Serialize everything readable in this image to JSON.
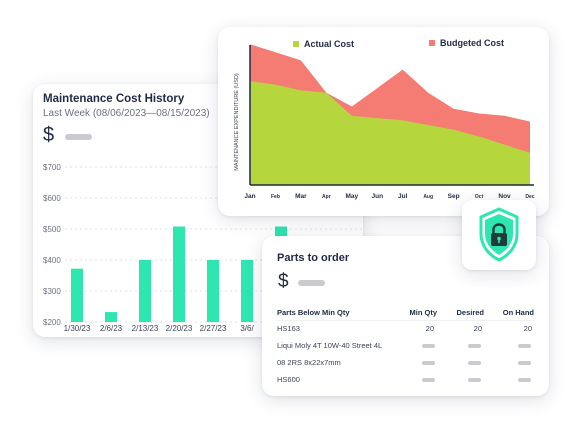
{
  "maintenance_history": {
    "title": "Maintenance Cost History",
    "subtitle": "Last Week (08/06/2023—08/15/2023)",
    "currency_symbol": "$",
    "bar_color": "#2ee6b0"
  },
  "expenditure": {
    "area_actual_color": "#b5d63d",
    "area_budget_color": "#f47c72"
  },
  "parts_to_order": {
    "title": "Parts to order",
    "currency_symbol": "$",
    "columns": [
      "Parts Below Min Qty",
      "Min Qty",
      "Desired",
      "On Hand"
    ],
    "rows": [
      {
        "name": "HS163",
        "min_qty": "20",
        "desired": "20",
        "on_hand": "20"
      },
      {
        "name": "Liqui Moly 4T 10W-40 Street 4L",
        "min_qty": "",
        "desired": "",
        "on_hand": ""
      },
      {
        "name": "08 2RS 8x22x7mm",
        "min_qty": "",
        "desired": "",
        "on_hand": ""
      },
      {
        "name": "HS600",
        "min_qty": "",
        "desired": "",
        "on_hand": ""
      }
    ]
  },
  "security_badge": {
    "icon": "lock-shield-icon",
    "color": "#2ee6b0"
  },
  "chart_data": [
    {
      "type": "bar",
      "title": "Maintenance Cost History",
      "categories": [
        "1/30/23",
        "2/6/23",
        "2/13/23",
        "2/20/23",
        "2/27/23",
        "3/6/",
        ""
      ],
      "values": [
        372,
        232,
        400,
        508,
        400,
        400,
        508
      ],
      "y_tick_labels": [
        "$200",
        "$300",
        "$400",
        "$500",
        "$600",
        "$700"
      ],
      "ylim": [
        200,
        700
      ],
      "grid": true,
      "legend": "none"
    },
    {
      "type": "area",
      "categories": [
        "Jan",
        "Feb",
        "Mar",
        "Apr",
        "May",
        "Jun",
        "Jul",
        "Aug",
        "Sep",
        "Oct",
        "Nov",
        "Dec"
      ],
      "series": [
        {
          "name": "Actual Cost",
          "values": [
            90,
            87,
            82,
            80,
            60,
            58,
            56,
            52,
            48,
            42,
            35,
            28
          ],
          "color": "#b5d63d"
        },
        {
          "name": "Budgeted Cost",
          "values": [
            122,
            115,
            108,
            80,
            68,
            84,
            100,
            80,
            66,
            62,
            60,
            55
          ],
          "color": "#f47c72"
        }
      ],
      "ylabel": "MAINTENANCE EXPENDITURE (USD)",
      "ylim": [
        0,
        130
      ],
      "grid": false,
      "legend": "top"
    }
  ]
}
